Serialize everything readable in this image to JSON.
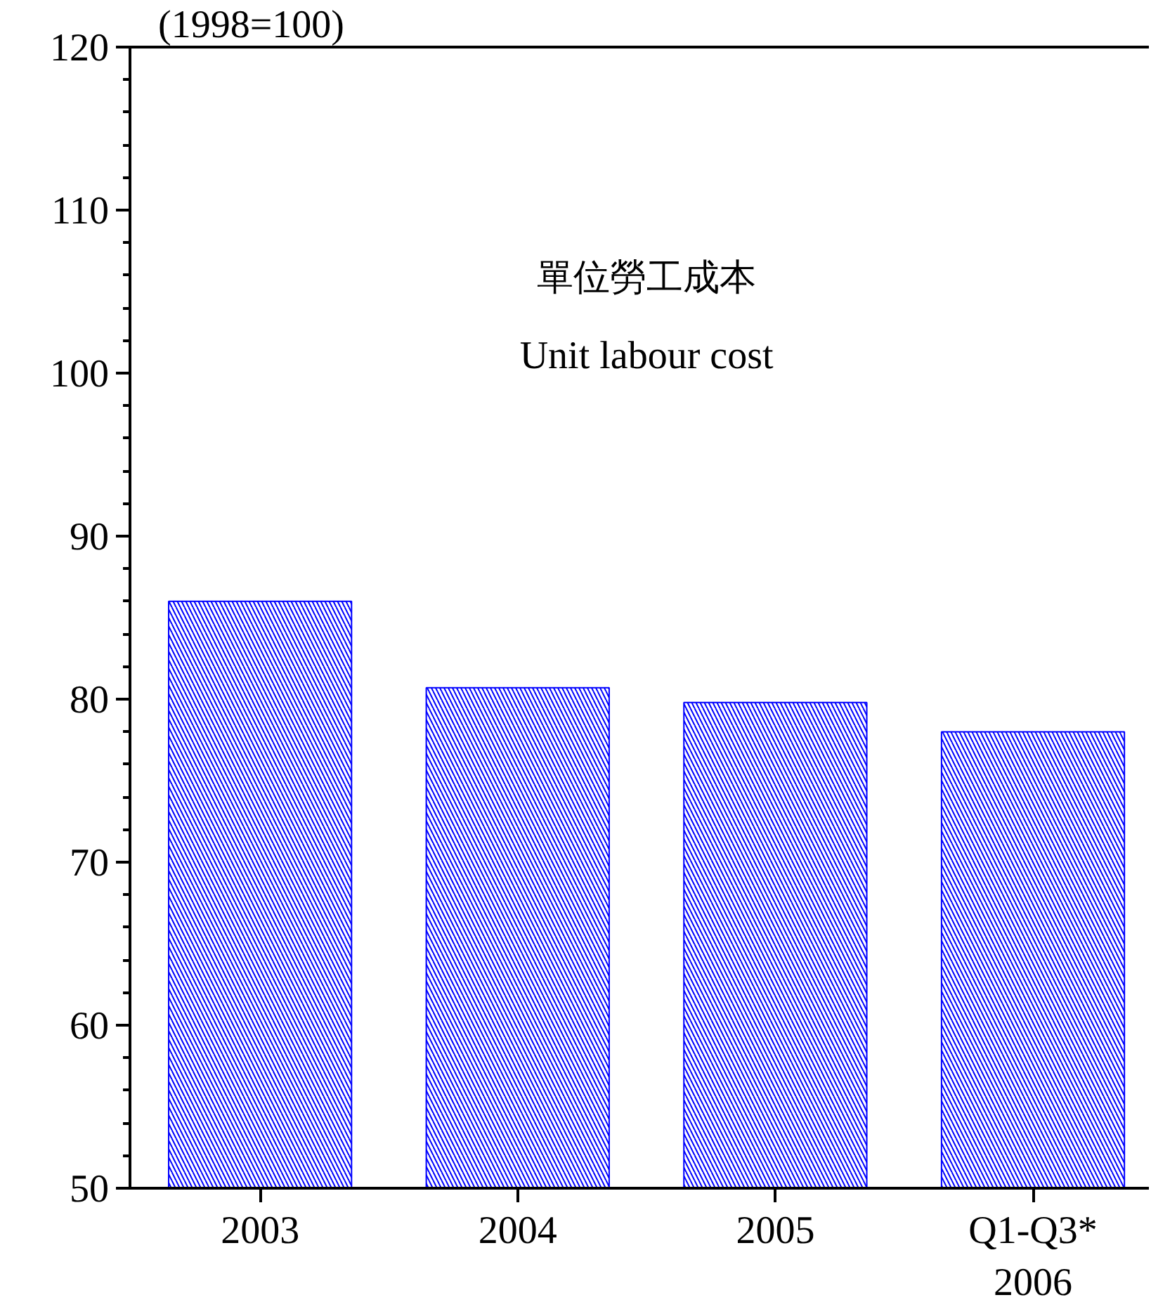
{
  "chart_data": {
    "type": "bar",
    "title": "單位勞工成本",
    "subtitle": "Unit labour cost",
    "ylabel": "(1998=100)",
    "categories": [
      "2003",
      "2004",
      "2005",
      "Q1-Q3*\n2006"
    ],
    "values": [
      86.0,
      80.7,
      79.8,
      78.0
    ],
    "color": "#0000ff",
    "ylim": [
      50,
      120
    ],
    "yticks": [
      50,
      60,
      70,
      80,
      90,
      100,
      110,
      120
    ],
    "grid": false
  }
}
